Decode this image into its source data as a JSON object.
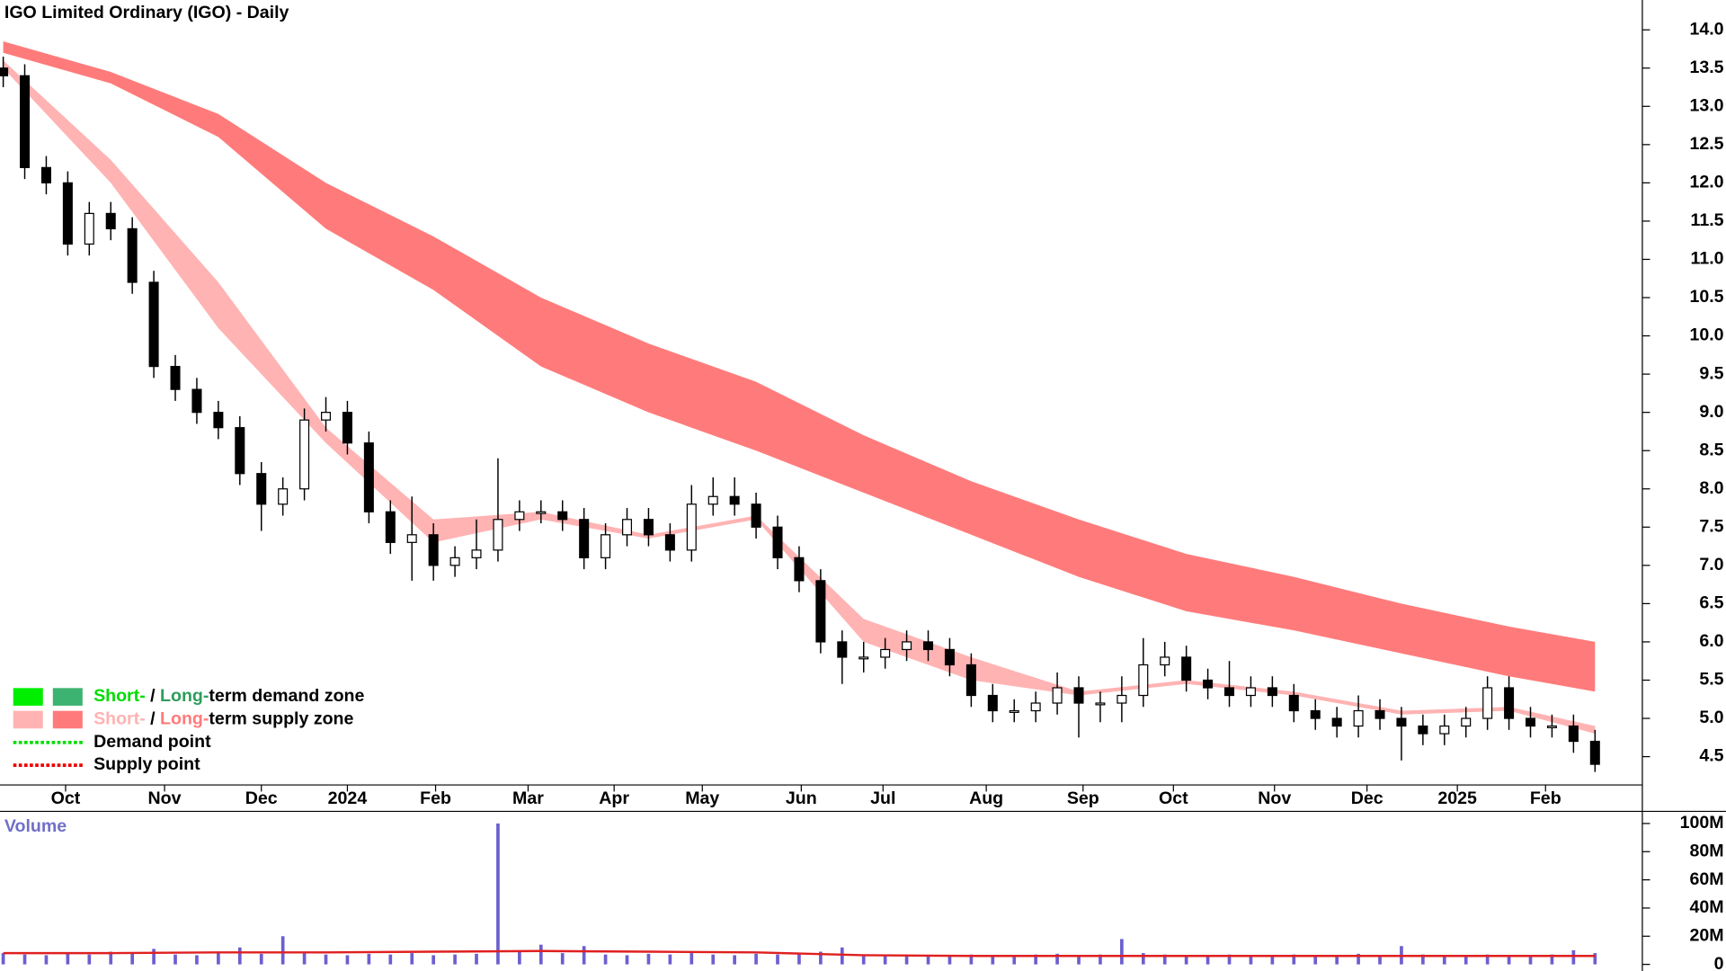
{
  "chart_data": {
    "type": "candlestick",
    "title": "IGO Limited Ordinary (IGO) - Daily",
    "xticks": [
      {
        "value": 2.9,
        "label": "Oct"
      },
      {
        "value": 7.5,
        "label": "Nov"
      },
      {
        "value": 12.0,
        "label": "Dec"
      },
      {
        "value": 16.0,
        "label": "2024"
      },
      {
        "value": 20.1,
        "label": "Feb"
      },
      {
        "value": 24.4,
        "label": "Mar"
      },
      {
        "value": 28.4,
        "label": "Apr"
      },
      {
        "value": 32.5,
        "label": "May"
      },
      {
        "value": 37.1,
        "label": "Jun"
      },
      {
        "value": 40.9,
        "label": "Jul"
      },
      {
        "value": 45.7,
        "label": "Aug"
      },
      {
        "value": 50.2,
        "label": "Sep"
      },
      {
        "value": 54.4,
        "label": "Oct"
      },
      {
        "value": 59.1,
        "label": "Nov"
      },
      {
        "value": 63.4,
        "label": "Dec"
      },
      {
        "value": 67.6,
        "label": "2025"
      },
      {
        "value": 71.7,
        "label": "Feb"
      }
    ],
    "xlim": [
      -0.15,
      76.2
    ],
    "ylim": [
      4.13,
      14.39
    ],
    "yticks": [
      {
        "value": 4.5,
        "label": "4.5"
      },
      {
        "value": 5,
        "label": "5.0"
      },
      {
        "value": 5.5,
        "label": "5.5"
      },
      {
        "value": 6,
        "label": "6.0"
      },
      {
        "value": 6.5,
        "label": "6.5"
      },
      {
        "value": 7,
        "label": "7.0"
      },
      {
        "value": 7.5,
        "label": "7.5"
      },
      {
        "value": 8,
        "label": "8.0"
      },
      {
        "value": 8.5,
        "label": "8.5"
      },
      {
        "value": 9,
        "label": "9.0"
      },
      {
        "value": 9.5,
        "label": "9.5"
      },
      {
        "value": 10,
        "label": "10.0"
      },
      {
        "value": 10.5,
        "label": "10.5"
      },
      {
        "value": 11,
        "label": "11.0"
      },
      {
        "value": 11.5,
        "label": "11.5"
      },
      {
        "value": 12,
        "label": "12.0"
      },
      {
        "value": 12.5,
        "label": "12.5"
      },
      {
        "value": 13,
        "label": "13.0"
      },
      {
        "value": 13.5,
        "label": "13.5"
      },
      {
        "value": 14,
        "label": "14.0"
      }
    ],
    "open": [
      13.5,
      13.4,
      12.2,
      12.0,
      11.2,
      11.6,
      11.4,
      10.7,
      9.6,
      9.3,
      9.0,
      8.8,
      8.2,
      7.8,
      8.0,
      8.9,
      9.0,
      8.6,
      7.7,
      7.3,
      7.4,
      7.0,
      7.1,
      7.2,
      7.6,
      7.7,
      7.7,
      7.6,
      7.1,
      7.4,
      7.6,
      7.4,
      7.2,
      7.8,
      7.9,
      7.8,
      7.5,
      7.1,
      6.8,
      6.0,
      5.8,
      5.8,
      5.9,
      6.0,
      5.9,
      5.7,
      5.3,
      5.1,
      5.1,
      5.2,
      5.4,
      5.2,
      5.2,
      5.3,
      5.7,
      5.8,
      5.5,
      5.4,
      5.3,
      5.4,
      5.3,
      5.1,
      5.0,
      4.9,
      5.1,
      5.0,
      4.9,
      4.8,
      4.9,
      5.0,
      5.4,
      5.0,
      4.9,
      4.9,
      4.7
    ],
    "high": [
      13.65,
      13.55,
      12.35,
      12.15,
      11.75,
      11.75,
      11.55,
      10.85,
      9.75,
      9.45,
      9.15,
      8.95,
      8.35,
      8.15,
      9.05,
      9.2,
      9.15,
      8.75,
      7.85,
      7.9,
      7.55,
      7.25,
      7.6,
      8.4,
      7.85,
      7.85,
      7.85,
      7.75,
      7.55,
      7.75,
      7.75,
      7.55,
      8.05,
      8.15,
      8.15,
      7.95,
      7.65,
      7.25,
      6.95,
      6.15,
      6.0,
      6.05,
      6.15,
      6.15,
      6.05,
      5.85,
      5.45,
      5.25,
      5.35,
      5.6,
      5.55,
      5.35,
      5.55,
      6.05,
      6.0,
      5.95,
      5.65,
      5.75,
      5.55,
      5.55,
      5.45,
      5.25,
      5.15,
      5.3,
      5.25,
      5.15,
      5.05,
      5.05,
      5.15,
      5.55,
      5.55,
      5.15,
      5.05,
      5.05,
      4.85
    ],
    "low": [
      13.25,
      12.05,
      11.85,
      11.05,
      11.05,
      11.25,
      10.55,
      9.45,
      9.15,
      8.85,
      8.65,
      8.05,
      7.45,
      7.65,
      7.85,
      8.75,
      8.45,
      7.55,
      7.15,
      6.8,
      6.8,
      6.85,
      6.95,
      7.05,
      7.45,
      7.55,
      7.45,
      6.95,
      6.95,
      7.25,
      7.25,
      7.05,
      7.05,
      7.65,
      7.65,
      7.35,
      6.95,
      6.65,
      5.85,
      5.45,
      5.6,
      5.65,
      5.75,
      5.75,
      5.55,
      5.15,
      4.95,
      4.95,
      4.95,
      5.05,
      4.75,
      4.95,
      4.95,
      5.15,
      5.55,
      5.35,
      5.25,
      5.15,
      5.15,
      5.15,
      4.95,
      4.85,
      4.75,
      4.75,
      4.85,
      4.45,
      4.65,
      4.65,
      4.75,
      4.85,
      4.85,
      4.75,
      4.75,
      4.55,
      4.3
    ],
    "close": [
      13.4,
      12.2,
      12.0,
      11.2,
      11.6,
      11.4,
      10.7,
      9.6,
      9.3,
      9.0,
      8.8,
      8.2,
      7.8,
      8.0,
      8.9,
      9.0,
      8.6,
      7.7,
      7.3,
      7.4,
      7.0,
      7.1,
      7.2,
      7.6,
      7.7,
      7.7,
      7.6,
      7.1,
      7.4,
      7.6,
      7.4,
      7.2,
      7.8,
      7.9,
      7.8,
      7.5,
      7.1,
      6.8,
      6.0,
      5.8,
      5.8,
      5.9,
      6.0,
      5.9,
      5.7,
      5.3,
      5.1,
      5.1,
      5.2,
      5.4,
      5.2,
      5.2,
      5.3,
      5.7,
      5.8,
      5.5,
      5.4,
      5.3,
      5.4,
      5.3,
      5.1,
      5.0,
      4.9,
      5.1,
      5.0,
      4.9,
      4.8,
      4.9,
      5.0,
      5.4,
      5.0,
      4.9,
      4.9,
      4.7,
      4.4
    ],
    "bands": {
      "x": [
        0,
        5,
        10,
        15,
        20,
        25,
        30,
        35,
        40,
        45,
        50,
        55,
        60,
        65,
        70,
        74
      ],
      "series": [
        {
          "name": "Long-term supply zone",
          "color": "#ff7b7b",
          "upper": [
            13.85,
            13.45,
            12.9,
            12.0,
            11.3,
            10.5,
            9.9,
            9.4,
            8.7,
            8.1,
            7.6,
            7.15,
            6.85,
            6.5,
            6.2,
            6.0
          ],
          "lower": [
            13.7,
            13.3,
            12.6,
            11.4,
            10.6,
            9.6,
            9.0,
            8.5,
            7.95,
            7.4,
            6.85,
            6.4,
            6.15,
            5.85,
            5.55,
            5.35
          ]
        },
        {
          "name": "Short-term supply zone",
          "color": "#ffb3b3",
          "upper": [
            13.6,
            12.3,
            10.7,
            8.8,
            7.6,
            7.7,
            7.4,
            7.65,
            6.3,
            5.8,
            5.35,
            5.5,
            5.35,
            5.1,
            5.15,
            4.9
          ],
          "lower": [
            13.5,
            12.0,
            10.1,
            8.6,
            7.3,
            7.6,
            7.35,
            7.6,
            6.0,
            5.5,
            5.3,
            5.45,
            5.3,
            5.05,
            5.1,
            4.8
          ]
        }
      ]
    },
    "volume": {
      "label": "Volume",
      "color": "#6b5fcf",
      "ylim": [
        -4700000,
        108600000
      ],
      "yticks": [
        {
          "value": 0,
          "label": "0"
        },
        {
          "value": 20000000,
          "label": "20M"
        },
        {
          "value": 40000000,
          "label": "40M"
        },
        {
          "value": 60000000,
          "label": "60M"
        },
        {
          "value": 80000000,
          "label": "80M"
        },
        {
          "value": 100000000,
          "label": "100M"
        }
      ],
      "values": [
        8000000,
        7000000,
        6500000,
        8500000,
        7000000,
        9000000,
        7500000,
        11000000,
        7000000,
        6500000,
        8000000,
        12000000,
        7500000,
        20000000,
        8500000,
        7000000,
        6500000,
        7500000,
        7000000,
        8000000,
        6500000,
        7000000,
        7500000,
        100000000,
        9000000,
        14000000,
        8000000,
        13000000,
        7000000,
        6500000,
        7500000,
        7000000,
        8000000,
        7000000,
        6500000,
        7500000,
        7000000,
        8000000,
        9000000,
        12000000,
        7000000,
        6500000,
        7000000,
        6000000,
        6500000,
        7000000,
        6500000,
        6000000,
        7000000,
        7500000,
        6500000,
        7000000,
        18000000,
        8000000,
        7000000,
        6500000,
        6000000,
        7000000,
        6500000,
        6000000,
        7000000,
        6500000,
        6000000,
        7500000,
        6500000,
        13000000,
        7000000,
        6000000,
        6500000,
        7000000,
        6500000,
        6000000,
        7000000,
        10000000,
        8000000
      ],
      "ma": {
        "color": "#e02020",
        "values": [
          8000000,
          8000000,
          8500000,
          8500000,
          9000000,
          9500000,
          9000000,
          8500000,
          6500000,
          6000000,
          6000000,
          6000000,
          6000000,
          6000000,
          6000000,
          6000000
        ]
      }
    },
    "legend": [
      {
        "kind": "zone",
        "colors": [
          "#00ee00",
          "#3cb371"
        ],
        "parts": [
          {
            "text": "Short-",
            "color": "#00dd00"
          },
          {
            "text": " / ",
            "color": "#000000"
          },
          {
            "text": "Long-",
            "color": "#2e9e5b"
          },
          {
            "text": "term demand zone",
            "color": "#000000"
          }
        ]
      },
      {
        "kind": "zone",
        "colors": [
          "#ffb3b3",
          "#ff7b7b"
        ],
        "parts": [
          {
            "text": "Short-",
            "color": "#ffb3b3"
          },
          {
            "text": " / ",
            "color": "#000000"
          },
          {
            "text": "Long-",
            "color": "#ff7b7b"
          },
          {
            "text": "term supply zone",
            "color": "#000000"
          }
        ]
      },
      {
        "kind": "point",
        "colors": [
          "#00dd00"
        ],
        "parts": [
          {
            "text": "Demand point",
            "color": "#000000"
          }
        ]
      },
      {
        "kind": "point",
        "colors": [
          "#ee0000"
        ],
        "parts": [
          {
            "text": "Supply point",
            "color": "#000000"
          }
        ]
      }
    ]
  }
}
